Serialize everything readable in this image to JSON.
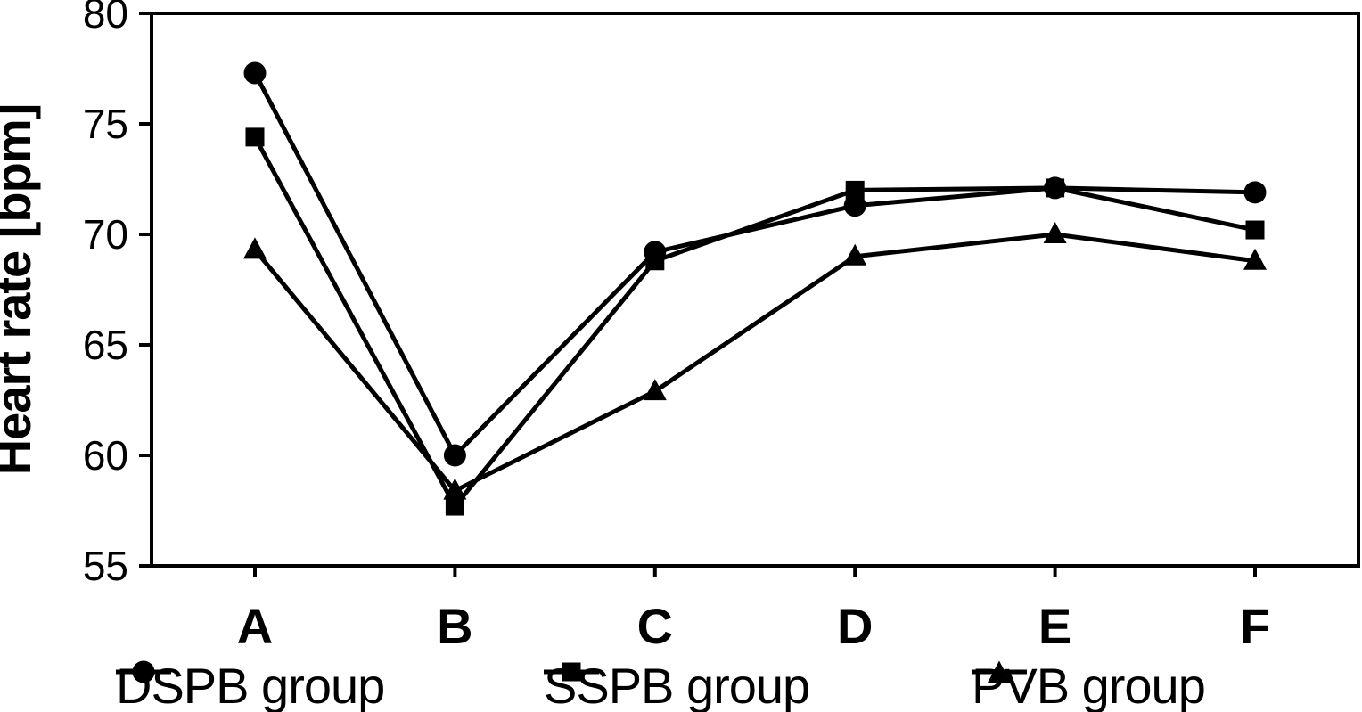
{
  "figure": {
    "background": "#ffffff",
    "ink": "#000000"
  },
  "chart_data": {
    "type": "line",
    "title": "",
    "xlabel": "",
    "ylabel": "Heart rate [bpm]",
    "categories": [
      "A",
      "B",
      "C",
      "D",
      "E",
      "F"
    ],
    "ylim": [
      55,
      80
    ],
    "yticks": [
      55,
      60,
      65,
      70,
      75,
      80
    ],
    "grid": false,
    "legend_position": "bottom",
    "series": [
      {
        "name": "DSPB group",
        "marker": "circle",
        "values": [
          77.3,
          60.0,
          69.2,
          71.3,
          72.1,
          71.9
        ]
      },
      {
        "name": "SSPB group",
        "marker": "square",
        "values": [
          74.4,
          57.7,
          68.8,
          72.0,
          72.1,
          70.2
        ]
      },
      {
        "name": "PVB group",
        "marker": "triangle",
        "values": [
          69.3,
          58.4,
          62.9,
          69.0,
          70.0,
          68.8
        ]
      }
    ]
  }
}
